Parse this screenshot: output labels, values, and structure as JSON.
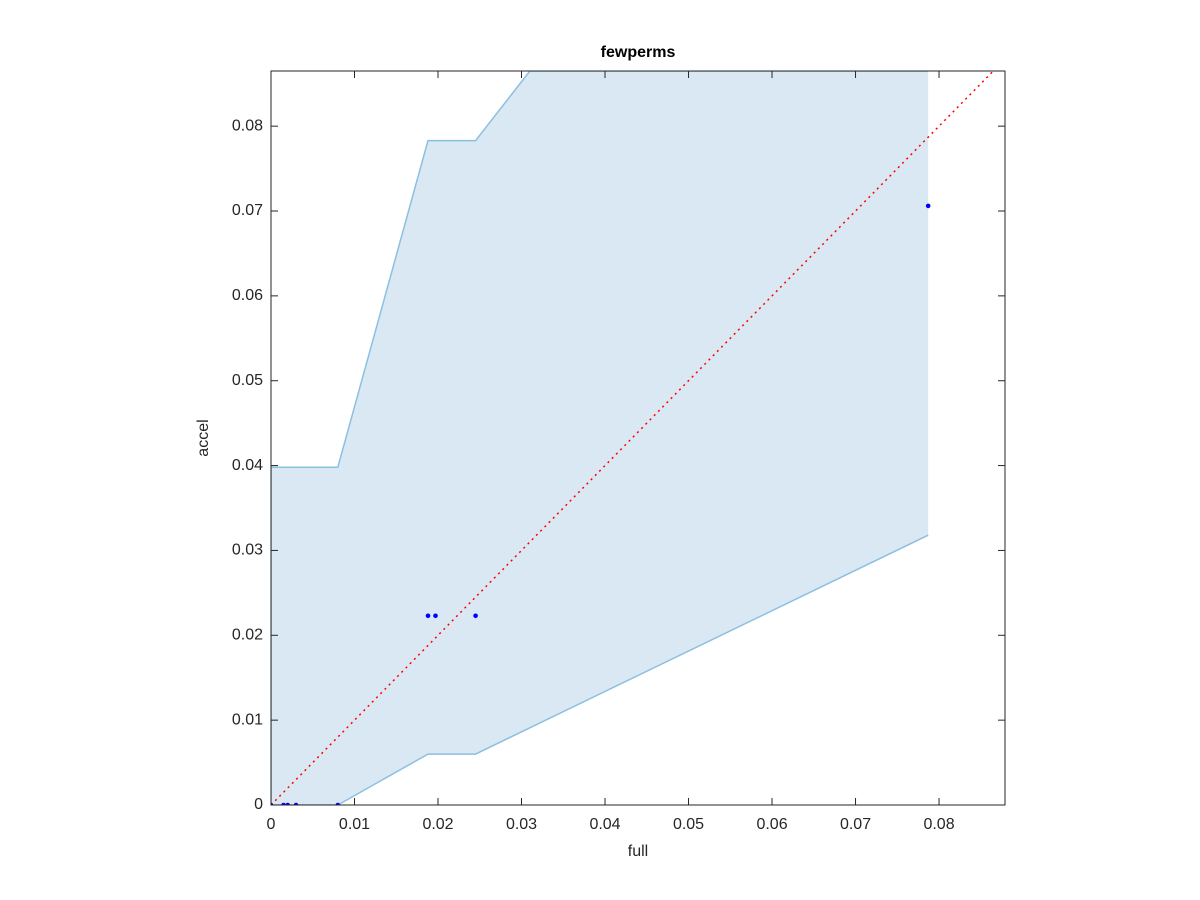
{
  "chart_data": {
    "type": "scatter",
    "title": "fewperms",
    "x_label": "full",
    "y_label": "accel",
    "xlim": [
      0,
      0.0879
    ],
    "ylim": [
      0,
      0.0865
    ],
    "xticks": [
      0,
      0.01,
      0.02,
      0.03,
      0.04,
      0.05,
      0.06,
      0.07,
      0.08
    ],
    "yticks": [
      0,
      0.01,
      0.02,
      0.03,
      0.04,
      0.05,
      0.06,
      0.07,
      0.08
    ],
    "series": [
      {
        "color": "#0000ff",
        "x": [
          0,
          0.0015,
          0.002,
          0.003,
          0.008,
          0.0188,
          0.0197,
          0.0245,
          0.0787
        ],
        "values": [
          0,
          0,
          0,
          0,
          0,
          0.0223,
          0.0223,
          0.0223,
          0.0706
        ]
      }
    ],
    "band": {
      "color": "#dae8f4",
      "edge_color": "#8cc0e0",
      "x": [
        0,
        0.008,
        0.0188,
        0.0245,
        0.031,
        0.0787
      ],
      "upper": [
        0.0398,
        0.0398,
        0.0783,
        0.0783,
        0.0865,
        0.0865
      ],
      "lower": [
        0,
        0,
        0.006,
        0.006,
        0.0091,
        0.0318
      ]
    },
    "reference_line_color": "#ff0000"
  }
}
